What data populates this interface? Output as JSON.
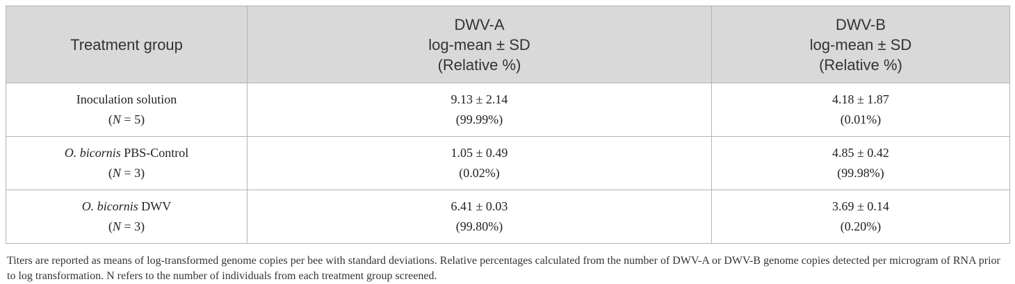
{
  "table": {
    "header": {
      "col1": "Treatment group",
      "col2": {
        "line1": "DWV-A",
        "line2": "log-mean ± SD",
        "line3": "(Relative %)"
      },
      "col3": {
        "line1": "DWV-B",
        "line2": "log-mean ± SD",
        "line3": "(Relative %)"
      }
    },
    "rows": [
      {
        "group_italic": "",
        "group_rest": "Inoculation solution",
        "n_prefix": "(",
        "n_var": "N",
        "n_suffix": " = 5)",
        "dwv_a": "9.13 ± 2.14",
        "dwv_a_pct": "(99.99%)",
        "dwv_b": "4.18 ± 1.87",
        "dwv_b_pct": "(0.01%)"
      },
      {
        "group_italic": "O. bicornis",
        "group_rest": " PBS-Control",
        "n_prefix": "(",
        "n_var": "N",
        "n_suffix": " = 3)",
        "dwv_a": "1.05 ± 0.49",
        "dwv_a_pct": "(0.02%)",
        "dwv_b": "4.85 ± 0.42",
        "dwv_b_pct": "(99.98%)"
      },
      {
        "group_italic": "O. bicornis",
        "group_rest": " DWV",
        "n_prefix": "(",
        "n_var": "N",
        "n_suffix": " = 3)",
        "dwv_a": "6.41 ± 0.03",
        "dwv_a_pct": "(99.80%)",
        "dwv_b": "3.69 ± 0.14",
        "dwv_b_pct": "(0.20%)"
      }
    ]
  },
  "footnote": "Titers are reported as means of log-transformed genome copies per bee with standard deviations. Relative percentages calculated from the number of DWV-A or DWV-B genome copies detected per microgram of RNA prior to log transformation. N refers to the number of individuals from each treatment group screened."
}
